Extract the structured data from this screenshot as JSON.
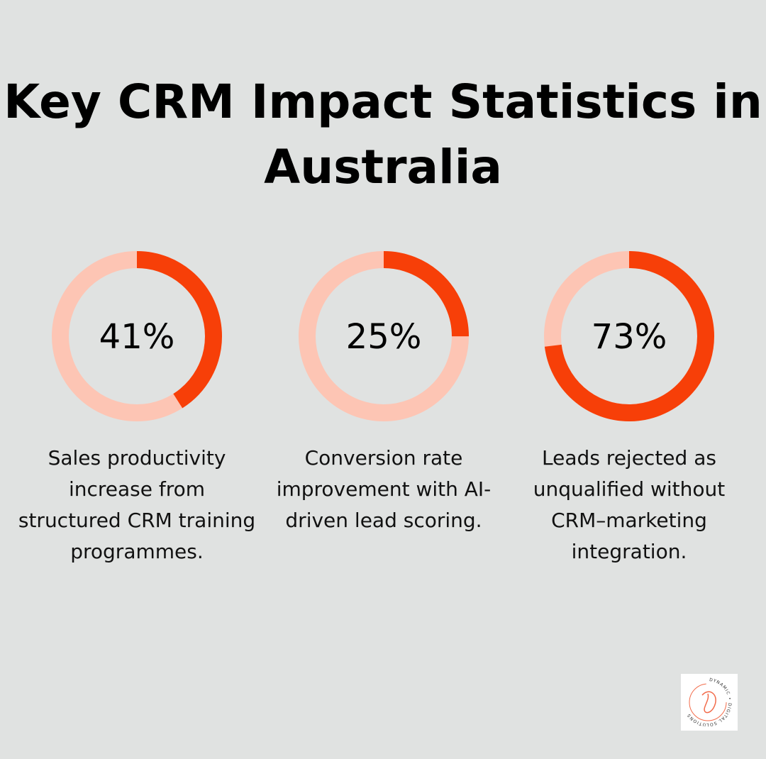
{
  "title": "Key CRM Impact Statistics in Australia",
  "colors": {
    "background": "#e0e2e1",
    "filled": "#f73f08",
    "track": "#fdc5b4"
  },
  "chart_data": [
    {
      "type": "pie",
      "variant": "donut",
      "value": 41,
      "max": 100,
      "label": "41%",
      "description": "Sales productivity increase from structured CRM training programmes."
    },
    {
      "type": "pie",
      "variant": "donut",
      "value": 25,
      "max": 100,
      "label": "25%",
      "description": "Conversion rate improvement with AI-driven lead scoring."
    },
    {
      "type": "pie",
      "variant": "donut",
      "value": 73,
      "max": 100,
      "label": "73%",
      "description": "Leads rejected as unqualified without CRM–marketing integration."
    }
  ],
  "logo": {
    "text": "DYNAMIC • DIGITAL SOLUTIONS"
  }
}
